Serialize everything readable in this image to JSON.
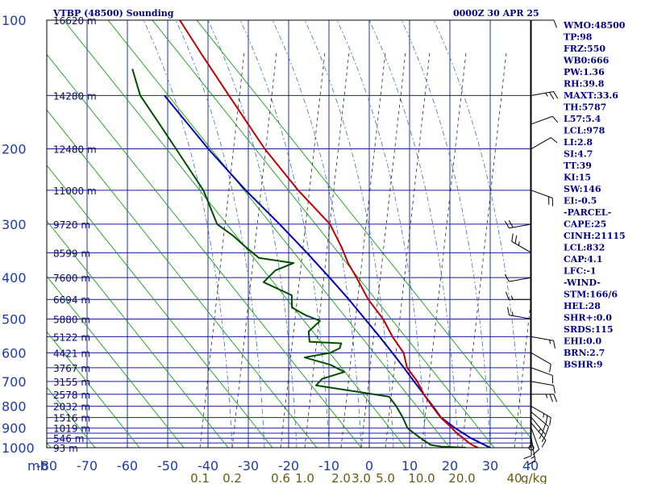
{
  "header": {
    "station": "VTBP (48500) Sounding",
    "time": "0000Z 30 APR 25"
  },
  "indices": [
    "WMO:48500",
    "TP:98",
    "FRZ:550",
    "WB0:666",
    "PW:1.36",
    "RH:39.8",
    "MAXT:33.6",
    "TH:5787",
    "L57:5.4",
    "LCL:978",
    "LI:2.8",
    "SI:4.7",
    "TT:39",
    "KI:15",
    "SW:146",
    "EI:-0.5",
    "-PARCEL-",
    "CAPE:25",
    "CINH:21115",
    "LCL:832",
    "CAP:4.1",
    "LFC:-1",
    "-WIND-",
    "STM:166/6",
    "HEL:28",
    "SHR+:0.0",
    "SRDS:115",
    "EHI:0.0",
    "BRN:2.7",
    "BSHR:9"
  ],
  "colors": {
    "isobar": "#1a1aa0",
    "isotherm": "#2233aa",
    "dry_adiabat": "#1aa01a",
    "moist_adiabat": "#3a6ad0",
    "mixing_ratio": "#2a2a2a",
    "temperature": "#c00000",
    "dewpoint": "#004d00",
    "parcel": "#0000b0",
    "frame": "#000000"
  },
  "chart_data": {
    "type": "line",
    "title": "VTBP (48500) Sounding",
    "pressure_unit_label": "mb",
    "mixing_ratio_unit_label": "g/kg",
    "pressure_ticks": [
      {
        "p": 100,
        "label": "100"
      },
      {
        "p": 200,
        "label": "200"
      },
      {
        "p": 300,
        "label": "300"
      },
      {
        "p": 400,
        "label": "400"
      },
      {
        "p": 500,
        "label": "500"
      },
      {
        "p": 600,
        "label": "600"
      },
      {
        "p": 700,
        "label": "700"
      },
      {
        "p": 800,
        "label": "800"
      },
      {
        "p": 900,
        "label": "900"
      },
      {
        "p": 1000,
        "label": "1000"
      }
    ],
    "isobars": [
      100,
      150,
      200,
      250,
      300,
      350,
      400,
      450,
      500,
      550,
      600,
      650,
      700,
      750,
      800,
      850,
      900,
      925,
      950,
      975,
      1000
    ],
    "temperature_ticks": [
      {
        "t": -80,
        "label": "-80"
      },
      {
        "t": -70,
        "label": "-70"
      },
      {
        "t": -60,
        "label": "-60"
      },
      {
        "t": -50,
        "label": "-50"
      },
      {
        "t": -40,
        "label": "-40"
      },
      {
        "t": -30,
        "label": "-30"
      },
      {
        "t": -20,
        "label": "-20"
      },
      {
        "t": -10,
        "label": "-10"
      },
      {
        "t": 0,
        "label": "0"
      },
      {
        "t": 10,
        "label": "10"
      },
      {
        "t": 20,
        "label": "20"
      },
      {
        "t": 30,
        "label": "30"
      },
      {
        "t": 40,
        "label": "40"
      }
    ],
    "trange": [
      -80,
      40
    ],
    "prange": [
      100,
      1000
    ],
    "height_labels": [
      {
        "p": 100,
        "label": "16620 m"
      },
      {
        "p": 150,
        "label": "14280 m"
      },
      {
        "p": 200,
        "label": "12480 m"
      },
      {
        "p": 250,
        "label": "11000 m"
      },
      {
        "p": 300,
        "label": "9720 m"
      },
      {
        "p": 350,
        "label": "8599 m"
      },
      {
        "p": 400,
        "label": "7600 m"
      },
      {
        "p": 450,
        "label": "6694 m"
      },
      {
        "p": 500,
        "label": "5880 m"
      },
      {
        "p": 550,
        "label": "5122 m"
      },
      {
        "p": 600,
        "label": "4421 m"
      },
      {
        "p": 650,
        "label": "3767 m"
      },
      {
        "p": 700,
        "label": "3155 m"
      },
      {
        "p": 750,
        "label": "2578 m"
      },
      {
        "p": 800,
        "label": "2032 m"
      },
      {
        "p": 850,
        "label": "1516 m"
      },
      {
        "p": 900,
        "label": "1019 m"
      },
      {
        "p": 950,
        "label": "546 m"
      },
      {
        "p": 1000,
        "label": "93 m"
      }
    ],
    "mixing_ratio_ticks": [
      {
        "label": "0.1",
        "x_t": -42
      },
      {
        "label": "0.2",
        "x_t": -34
      },
      {
        "label": "0.6",
        "label_2": "",
        "x_t": -22
      },
      {
        "label": "1.0",
        "x_t": -16
      },
      {
        "label": "2.0",
        "x_t": -7
      },
      {
        "label": "3.0",
        "x_t": -2
      },
      {
        "label": "5.0",
        "x_t": 4
      },
      {
        "label": "10.0",
        "x_t": 13
      },
      {
        "label": "20.0",
        "x_t": 23
      },
      {
        "label": "40",
        "x_t": 36
      }
    ],
    "temperature": [
      {
        "p": 1000,
        "t": 27.0
      },
      {
        "p": 990,
        "t": 25.8
      },
      {
        "p": 975,
        "t": 24.4
      },
      {
        "p": 950,
        "t": 22.6
      },
      {
        "p": 925,
        "t": 20.6
      },
      {
        "p": 900,
        "t": 19.0
      },
      {
        "p": 850,
        "t": 15.4
      },
      {
        "p": 800,
        "t": 12.4
      },
      {
        "p": 750,
        "t": 9.4
      },
      {
        "p": 700,
        "t": 6.8
      },
      {
        "p": 650,
        "t": 3.2
      },
      {
        "p": 600,
        "t": 1.2
      },
      {
        "p": 550,
        "t": -2.8
      },
      {
        "p": 500,
        "t": -6.5
      },
      {
        "p": 450,
        "t": -11.7
      },
      {
        "p": 400,
        "t": -16.3
      },
      {
        "p": 370,
        "t": -19.5
      },
      {
        "p": 340,
        "t": -22.3
      },
      {
        "p": 300,
        "t": -27.0
      },
      {
        "p": 250,
        "t": -37.5
      },
      {
        "p": 200,
        "t": -49.0
      },
      {
        "p": 150,
        "t": -62.0
      },
      {
        "p": 120,
        "t": -72.0
      },
      {
        "p": 100,
        "t": -80.0
      }
    ],
    "dewpoint": [
      {
        "p": 1000,
        "t": 24.0
      },
      {
        "p": 995,
        "t": 18.0
      },
      {
        "p": 985,
        "t": 15.0
      },
      {
        "p": 950,
        "t": 12.0
      },
      {
        "p": 925,
        "t": 10.0
      },
      {
        "p": 900,
        "t": 8.0
      },
      {
        "p": 875,
        "t": 7.0
      },
      {
        "p": 850,
        "t": 6.0
      },
      {
        "p": 800,
        "t": 3.5
      },
      {
        "p": 760,
        "t": 1.0
      },
      {
        "p": 715,
        "t": -18.0
      },
      {
        "p": 690,
        "t": -17.0
      },
      {
        "p": 665,
        "t": -12.0
      },
      {
        "p": 640,
        "t": -16.0
      },
      {
        "p": 615,
        "t": -23.0
      },
      {
        "p": 600,
        "t": -17.0
      },
      {
        "p": 585,
        "t": -15.0
      },
      {
        "p": 570,
        "t": -15.0
      },
      {
        "p": 565,
        "t": -23.0
      },
      {
        "p": 535,
        "t": -24.0
      },
      {
        "p": 505,
        "t": -22.0
      },
      {
        "p": 490,
        "t": -26.0
      },
      {
        "p": 470,
        "t": -30.0
      },
      {
        "p": 440,
        "t": -31.0
      },
      {
        "p": 410,
        "t": -39.0
      },
      {
        "p": 385,
        "t": -37.0
      },
      {
        "p": 370,
        "t": -33.0
      },
      {
        "p": 360,
        "t": -42.0
      },
      {
        "p": 340,
        "t": -46.0
      },
      {
        "p": 320,
        "t": -50.0
      },
      {
        "p": 300,
        "t": -55.0
      },
      {
        "p": 250,
        "t": -61.0
      },
      {
        "p": 200,
        "t": -71.0
      },
      {
        "p": 175,
        "t": -77.0
      },
      {
        "p": 150,
        "t": -84.0
      },
      {
        "p": 130,
        "t": -88.0
      }
    ],
    "parcel": [
      {
        "p": 1000,
        "t": 30.0
      },
      {
        "p": 950,
        "t": 24.5
      },
      {
        "p": 900,
        "t": 19.8
      },
      {
        "p": 850,
        "t": 15.5
      },
      {
        "p": 800,
        "t": 12.6
      },
      {
        "p": 750,
        "t": 9.4
      },
      {
        "p": 700,
        "t": 6.0
      },
      {
        "p": 650,
        "t": 2.4
      },
      {
        "p": 600,
        "t": -1.6
      },
      {
        "p": 550,
        "t": -6.0
      },
      {
        "p": 500,
        "t": -11.0
      },
      {
        "p": 450,
        "t": -16.5
      },
      {
        "p": 400,
        "t": -23.0
      },
      {
        "p": 350,
        "t": -30.5
      },
      {
        "p": 300,
        "t": -39.5
      },
      {
        "p": 250,
        "t": -50.5
      },
      {
        "p": 200,
        "t": -63.0
      },
      {
        "p": 150,
        "t": -78.0
      }
    ],
    "wind_barbs": [
      {
        "p": 100,
        "dir": 90,
        "spd": 10
      },
      {
        "p": 150,
        "dir": 80,
        "spd": 15
      },
      {
        "p": 175,
        "dir": 70,
        "spd": 10
      },
      {
        "p": 200,
        "dir": 60,
        "spd": 10
      },
      {
        "p": 250,
        "dir": 110,
        "spd": 20
      },
      {
        "p": 300,
        "dir": 260,
        "spd": 20
      },
      {
        "p": 350,
        "dir": 300,
        "spd": 15
      },
      {
        "p": 400,
        "dir": 260,
        "spd": 10
      },
      {
        "p": 450,
        "dir": 270,
        "spd": 5
      },
      {
        "p": 500,
        "dir": 280,
        "spd": 5
      },
      {
        "p": 550,
        "dir": 100,
        "spd": 5
      },
      {
        "p": 600,
        "dir": 120,
        "spd": 10
      },
      {
        "p": 650,
        "dir": 110,
        "spd": 10
      },
      {
        "p": 700,
        "dir": 100,
        "spd": 10
      },
      {
        "p": 750,
        "dir": 90,
        "spd": 15
      },
      {
        "p": 800,
        "dir": 120,
        "spd": 15
      },
      {
        "p": 825,
        "dir": 130,
        "spd": 20
      },
      {
        "p": 850,
        "dir": 140,
        "spd": 15
      },
      {
        "p": 875,
        "dir": 140,
        "spd": 10
      },
      {
        "p": 900,
        "dir": 160,
        "spd": 10
      },
      {
        "p": 925,
        "dir": 180,
        "spd": 10
      },
      {
        "p": 950,
        "dir": 170,
        "spd": 5
      },
      {
        "p": 1000,
        "dir": 0,
        "spd": 0
      }
    ]
  }
}
